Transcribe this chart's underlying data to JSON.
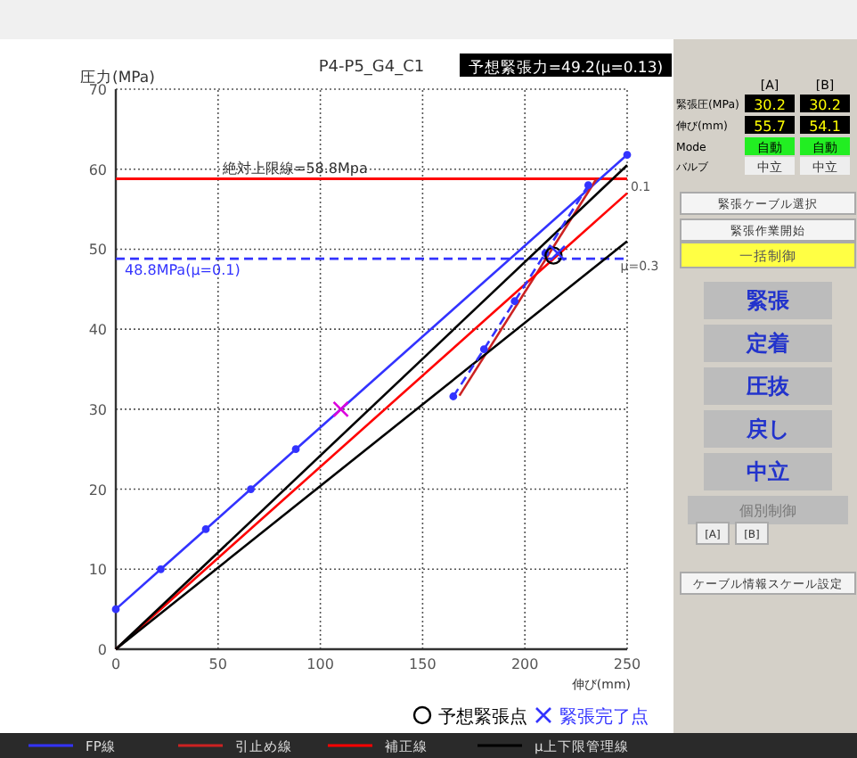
{
  "chart_data": [
    {
      "type": "line",
      "title": "P4-P5_G4_C1",
      "subtitle": "予想緊張力=49.2(μ=0.13)",
      "xlabel": "伸び(mm)",
      "ylabel": "圧力(MPa)",
      "xlim": [
        0,
        250
      ],
      "ylim": [
        0,
        70
      ],
      "xticks": [
        0,
        50,
        100,
        150,
        200,
        250
      ],
      "yticks": [
        0,
        10,
        20,
        30,
        40,
        50,
        60,
        70
      ],
      "grid": true,
      "legend": "bottom",
      "series": [
        {
          "name": "FP線",
          "color": "#3333ff",
          "x": [
            0,
            22,
            44,
            66,
            88,
            250
          ],
          "values": [
            5,
            10,
            15,
            20,
            25,
            61.8
          ],
          "marker": "circle"
        },
        {
          "name": "引止め線",
          "color": "#cc2222",
          "x": [
            168,
            235
          ],
          "values": [
            31.7,
            58.8
          ]
        },
        {
          "name": "補正線",
          "color": "#ff0000",
          "x": [
            0,
            250
          ],
          "values": [
            0,
            57
          ]
        },
        {
          "name": "μ上下限管理線",
          "color": "#000000",
          "x": [
            0,
            250
          ],
          "values": [
            0,
            60.5
          ]
        },
        {
          "color": "#000000",
          "x": [
            0,
            250
          ],
          "values": [
            0,
            51
          ]
        },
        {
          "color": "#3333ff",
          "x": [
            165,
            180,
            195,
            210,
            231
          ],
          "values": [
            31.6,
            37.5,
            43.5,
            49.5,
            58
          ],
          "marker": "circle",
          "line_style": "dashed"
        },
        {
          "type": "scatter",
          "color": "#dd00dd",
          "x": [
            110
          ],
          "values": [
            30
          ],
          "marker": "cross"
        },
        {
          "type": "scatter",
          "name": "予想緊張点",
          "color": "#000000",
          "x": [
            214
          ],
          "values": [
            49.2
          ],
          "marker": "circle"
        },
        {
          "type": "scatter",
          "name": "緊張完了点",
          "color": "#3333ff",
          "x": [
            216
          ],
          "values": [
            49.5
          ],
          "marker": "cross"
        }
      ],
      "ref_lines": [
        {
          "axis": "y",
          "value": 58.8,
          "label": "絶対上限線=58.8Mpa",
          "color": "#ff0000",
          "line_style": "solid"
        },
        {
          "axis": "y",
          "value": 48.8,
          "label": "48.8MPa(μ=0.1)",
          "color": "#3333ff",
          "line_style": "dashed"
        }
      ],
      "annotations": [
        {
          "text": "0.1",
          "x": 250,
          "y": 58
        },
        {
          "text": "μ=0.3",
          "x": 245,
          "y": 48
        }
      ]
    },
    {
      "type": "other",
      "annotations": [
        "[A]",
        "[B]",
        "緊張圧(MPa)",
        "30.2",
        "30.2",
        "伸び(mm)",
        "55.7",
        "54.1",
        "Mode",
        "自動",
        "自動",
        "バルブ",
        "中立",
        "中立",
        "緊張ケーブル選択",
        "緊張作業開始",
        "一括制御",
        "緊張",
        "定着",
        "圧抜",
        "戻し",
        "中立",
        "個別制御",
        "[A]",
        "[B]",
        "ケーブル情報スケール設定"
      ]
    }
  ]
}
